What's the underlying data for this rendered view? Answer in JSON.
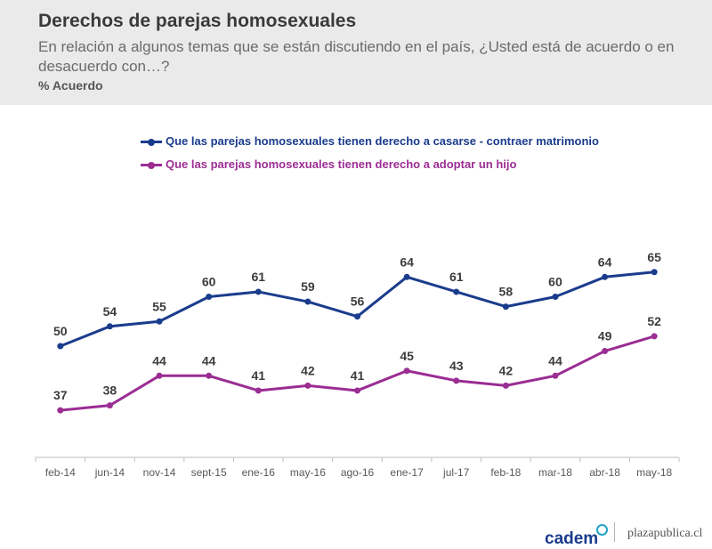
{
  "header": {
    "title": "Derechos de parejas homosexuales",
    "subtitle": "En relación a algunos temas que se están discutiendo en el país, ¿Usted está de acuerdo o en desacuerdo con…?",
    "measure": "% Acuerdo"
  },
  "footer": {
    "logo_text": "cadem",
    "site": "plazapublica.cl"
  },
  "colors": {
    "series_1": "#1a3c8c",
    "series_2": "#9b2d93",
    "axis": "#bfbfbf",
    "tick_label": "#595959"
  },
  "chart_data": {
    "type": "line",
    "categories": [
      "feb-14",
      "jun-14",
      "nov-14",
      "sept-15",
      "ene-16",
      "may-16",
      "ago-16",
      "ene-17",
      "jul-17",
      "feb-18",
      "mar-18",
      "abr-18",
      "may-18"
    ],
    "series": [
      {
        "name": "Que las parejas homosexuales tienen derecho a casarse  - contraer matrimonio",
        "values": [
          50,
          54,
          55,
          60,
          61,
          59,
          56,
          64,
          61,
          58,
          60,
          64,
          65
        ]
      },
      {
        "name": "Que las parejas homosexuales tienen derecho a adoptar un hijo",
        "values": [
          37,
          38,
          44,
          44,
          41,
          42,
          41,
          45,
          43,
          42,
          44,
          49,
          52
        ]
      }
    ],
    "ylim": [
      0,
      100
    ],
    "grid": false,
    "legend_position": "top",
    "data_labels": true
  }
}
